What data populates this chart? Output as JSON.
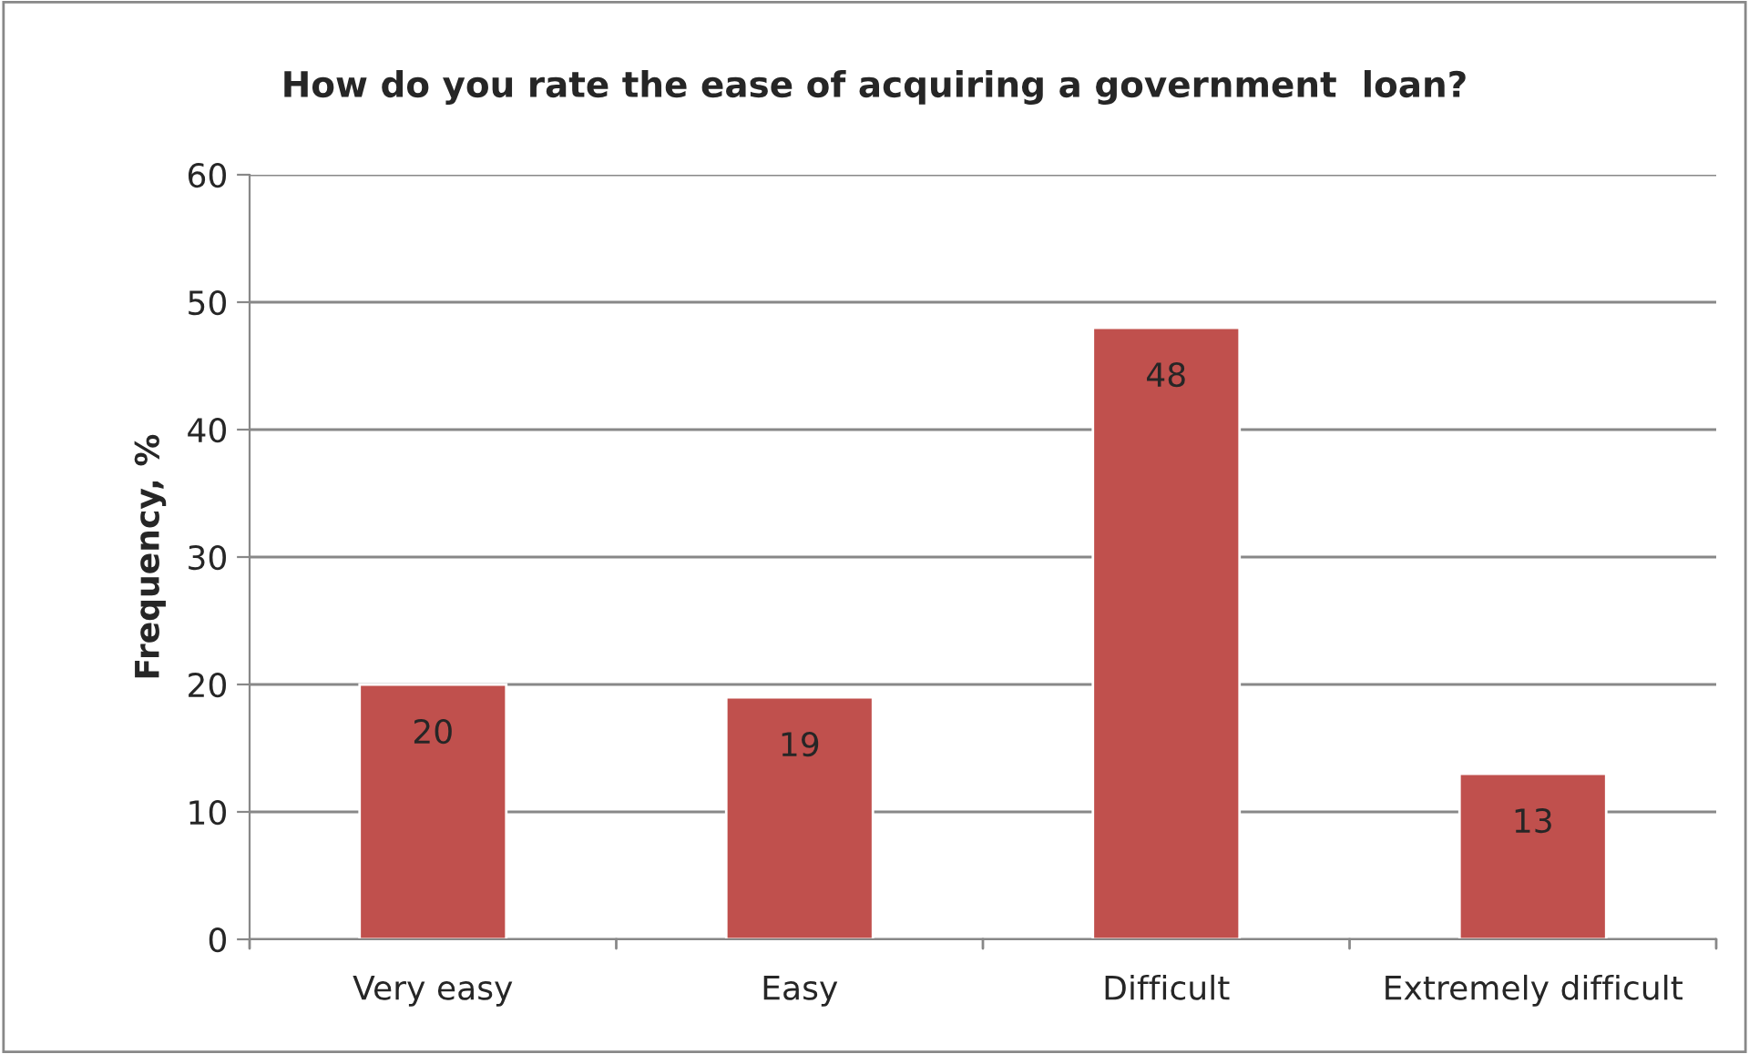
{
  "chart_data": {
    "type": "bar",
    "title": "How do you rate the ease of acquiring a government  loan?",
    "ylabel": "Frequency, %",
    "categories": [
      "Very easy",
      "Easy",
      "Difficult",
      "Extremely difficult"
    ],
    "values": [
      20,
      19,
      48,
      13
    ],
    "color": "#c0504d",
    "ylim": [
      0,
      60
    ],
    "yticks": [
      0,
      10,
      20,
      30,
      40,
      50,
      60
    ],
    "grid": "y",
    "data_labels": true,
    "legend": false
  }
}
